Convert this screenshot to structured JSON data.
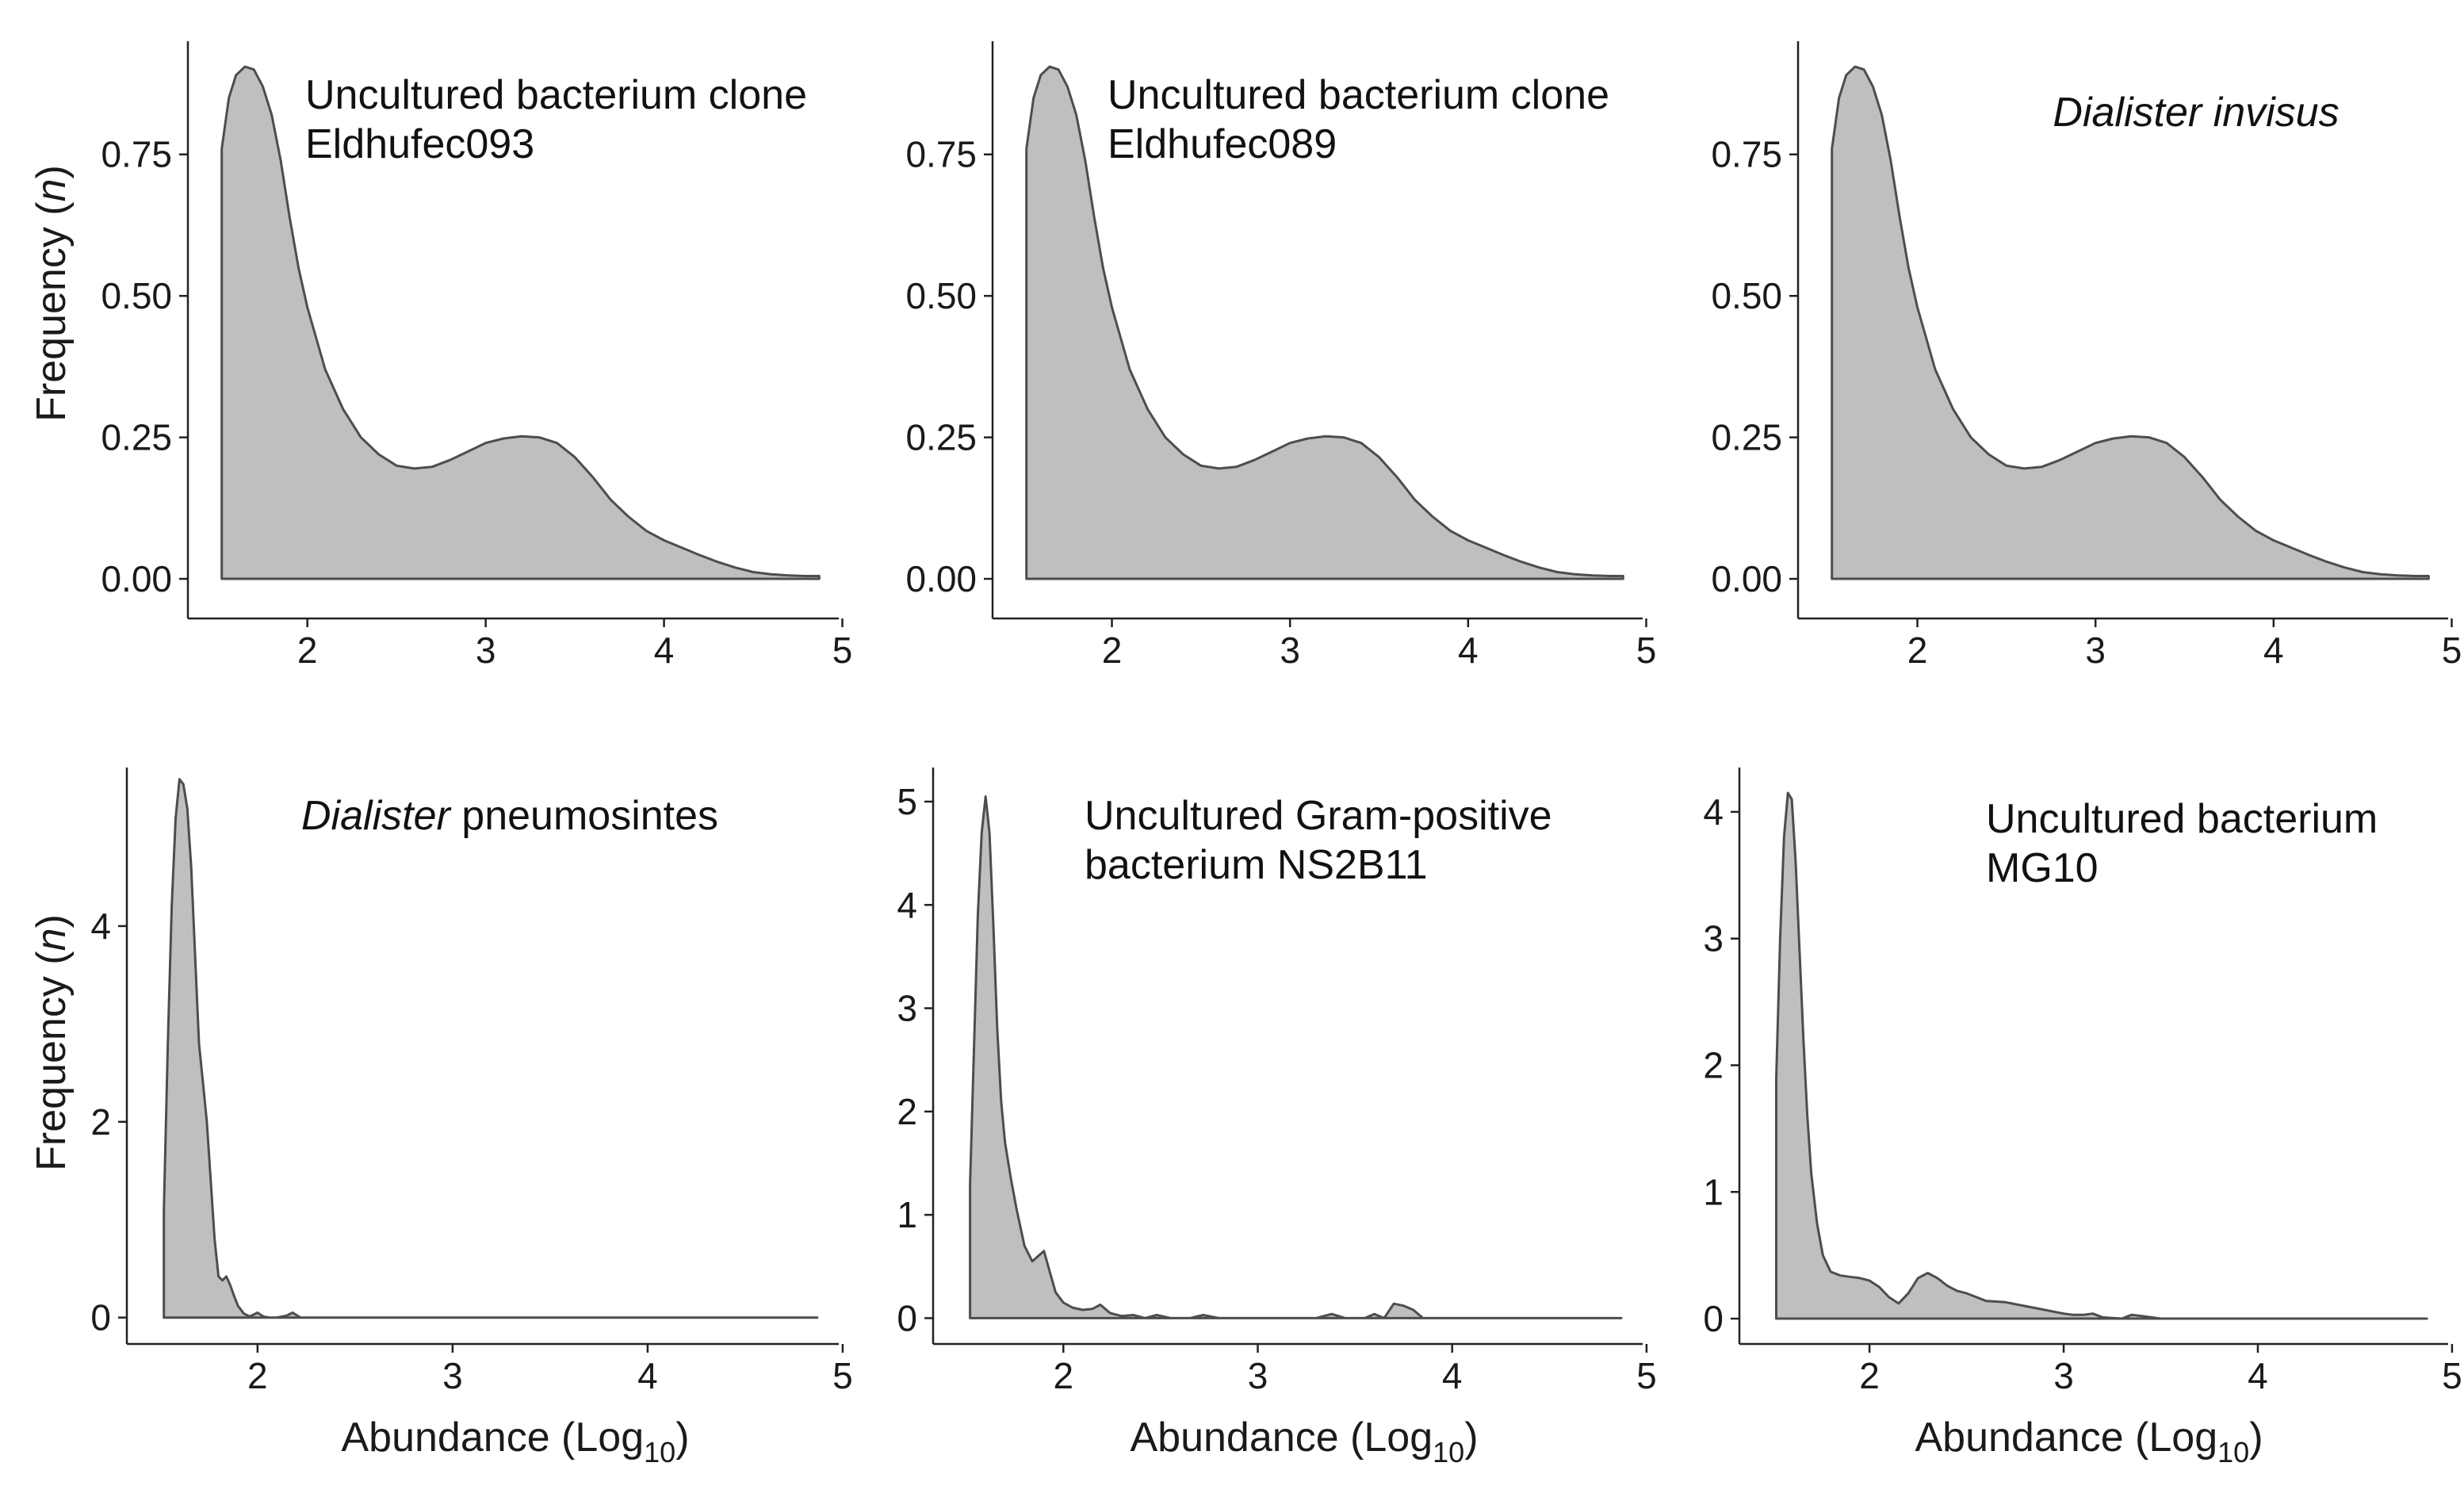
{
  "figure": {
    "ylabel": "Frequency",
    "ylabel_var": "n",
    "xlabel": "Abundance (Log",
    "xlabel_sub": "10",
    "xlabel_end": ")"
  },
  "chart_data": [
    {
      "type": "area",
      "title_lines": [
        [
          {
            "text": "Uncultured bacterium clone",
            "italic": false
          }
        ],
        [
          {
            "text": "Eldhufec093",
            "italic": false
          }
        ]
      ],
      "xlim": [
        1.33,
        4.98
      ],
      "ylim": [
        -0.07,
        0.95
      ],
      "xticks": [
        2,
        3,
        4,
        5
      ],
      "yticks": [
        0,
        0.25,
        0.5,
        0.75
      ],
      "ytick_labels": [
        "0.00",
        "0.25",
        "0.50",
        "0.75"
      ],
      "x": [
        1.52,
        1.52,
        1.56,
        1.6,
        1.65,
        1.7,
        1.75,
        1.8,
        1.85,
        1.9,
        1.95,
        2.0,
        2.1,
        2.2,
        2.3,
        2.4,
        2.5,
        2.6,
        2.7,
        2.8,
        2.9,
        3.0,
        3.1,
        3.2,
        3.3,
        3.4,
        3.5,
        3.6,
        3.7,
        3.8,
        3.9,
        4.0,
        4.1,
        4.2,
        4.3,
        4.4,
        4.5,
        4.6,
        4.7,
        4.8,
        4.87,
        4.87
      ],
      "y": [
        0,
        0.76,
        0.85,
        0.89,
        0.905,
        0.9,
        0.87,
        0.82,
        0.74,
        0.64,
        0.55,
        0.48,
        0.37,
        0.3,
        0.25,
        0.22,
        0.2,
        0.195,
        0.198,
        0.21,
        0.225,
        0.24,
        0.248,
        0.252,
        0.25,
        0.24,
        0.215,
        0.18,
        0.14,
        0.11,
        0.085,
        0.068,
        0.055,
        0.042,
        0.03,
        0.02,
        0.012,
        0.008,
        0.006,
        0.005,
        0.005,
        0
      ]
    },
    {
      "type": "area",
      "title_lines": [
        [
          {
            "text": "Uncultured bacterium clone",
            "italic": false
          }
        ],
        [
          {
            "text": "Eldhufec089",
            "italic": false
          }
        ]
      ],
      "xlim": [
        1.33,
        4.98
      ],
      "ylim": [
        -0.07,
        0.95
      ],
      "xticks": [
        2,
        3,
        4,
        5
      ],
      "yticks": [
        0,
        0.25,
        0.5,
        0.75
      ],
      "ytick_labels": [
        "0.00",
        "0.25",
        "0.50",
        "0.75"
      ],
      "x": [
        1.52,
        1.52,
        1.56,
        1.6,
        1.65,
        1.7,
        1.75,
        1.8,
        1.85,
        1.9,
        1.95,
        2.0,
        2.1,
        2.2,
        2.3,
        2.4,
        2.5,
        2.6,
        2.7,
        2.8,
        2.9,
        3.0,
        3.1,
        3.2,
        3.3,
        3.4,
        3.5,
        3.6,
        3.7,
        3.8,
        3.9,
        4.0,
        4.1,
        4.2,
        4.3,
        4.4,
        4.5,
        4.6,
        4.7,
        4.8,
        4.87,
        4.87
      ],
      "y": [
        0,
        0.76,
        0.85,
        0.89,
        0.905,
        0.9,
        0.87,
        0.82,
        0.74,
        0.64,
        0.55,
        0.48,
        0.37,
        0.3,
        0.25,
        0.22,
        0.2,
        0.195,
        0.198,
        0.21,
        0.225,
        0.24,
        0.248,
        0.252,
        0.25,
        0.24,
        0.215,
        0.18,
        0.14,
        0.11,
        0.085,
        0.068,
        0.055,
        0.042,
        0.03,
        0.02,
        0.012,
        0.008,
        0.006,
        0.005,
        0.005,
        0
      ]
    },
    {
      "type": "area",
      "title_lines": [
        [
          {
            "text": "Dialister invisus",
            "italic": true
          }
        ]
      ],
      "xlim": [
        1.33,
        4.98
      ],
      "ylim": [
        -0.07,
        0.95
      ],
      "xticks": [
        2,
        3,
        4,
        5
      ],
      "yticks": [
        0,
        0.25,
        0.5,
        0.75
      ],
      "ytick_labels": [
        "0.00",
        "0.25",
        "0.50",
        "0.75"
      ],
      "x": [
        1.52,
        1.52,
        1.56,
        1.6,
        1.65,
        1.7,
        1.75,
        1.8,
        1.85,
        1.9,
        1.95,
        2.0,
        2.1,
        2.2,
        2.3,
        2.4,
        2.5,
        2.6,
        2.7,
        2.8,
        2.9,
        3.0,
        3.1,
        3.2,
        3.3,
        3.4,
        3.5,
        3.6,
        3.7,
        3.8,
        3.9,
        4.0,
        4.1,
        4.2,
        4.3,
        4.4,
        4.5,
        4.6,
        4.7,
        4.8,
        4.87,
        4.87
      ],
      "y": [
        0,
        0.76,
        0.85,
        0.89,
        0.905,
        0.9,
        0.87,
        0.82,
        0.74,
        0.64,
        0.55,
        0.48,
        0.37,
        0.3,
        0.25,
        0.22,
        0.2,
        0.195,
        0.198,
        0.21,
        0.225,
        0.24,
        0.248,
        0.252,
        0.25,
        0.24,
        0.215,
        0.18,
        0.14,
        0.11,
        0.085,
        0.068,
        0.055,
        0.042,
        0.03,
        0.02,
        0.012,
        0.008,
        0.006,
        0.005,
        0.005,
        0
      ]
    },
    {
      "type": "area",
      "title_lines": [
        [
          {
            "text": "Dialister",
            "italic": true
          },
          {
            "text": " pneumosintes",
            "italic": false
          }
        ]
      ],
      "xlim": [
        1.33,
        4.98
      ],
      "ylim": [
        -0.27,
        5.62
      ],
      "xticks": [
        2,
        3,
        4,
        5
      ],
      "yticks": [
        0,
        2,
        4
      ],
      "ytick_labels": [
        "0",
        "2",
        "4"
      ],
      "x": [
        1.52,
        1.52,
        1.54,
        1.56,
        1.58,
        1.6,
        1.62,
        1.64,
        1.66,
        1.68,
        1.7,
        1.72,
        1.74,
        1.76,
        1.78,
        1.8,
        1.82,
        1.84,
        1.86,
        1.88,
        1.9,
        1.93,
        1.96,
        2.0,
        2.03,
        2.06,
        2.1,
        2.15,
        2.18,
        2.22,
        2.3,
        4.87,
        4.87
      ],
      "y": [
        0,
        1.1,
        2.8,
        4.2,
        5.1,
        5.5,
        5.45,
        5.2,
        4.6,
        3.7,
        2.8,
        2.4,
        2.0,
        1.4,
        0.8,
        0.42,
        0.38,
        0.42,
        0.33,
        0.22,
        0.12,
        0.04,
        0.01,
        0.05,
        0.01,
        0.0,
        0.0,
        0.02,
        0.05,
        0.0,
        0.0,
        0.0,
        0
      ]
    },
    {
      "type": "area",
      "title_lines": [
        [
          {
            "text": "Uncultured Gram-positive",
            "italic": false
          }
        ],
        [
          {
            "text": "bacterium NS2B11",
            "italic": false
          }
        ]
      ],
      "xlim": [
        1.33,
        4.98
      ],
      "ylim": [
        -0.25,
        5.33
      ],
      "xticks": [
        2,
        3,
        4,
        5
      ],
      "yticks": [
        0,
        1,
        2,
        3,
        4,
        5
      ],
      "ytick_labels": [
        "0",
        "1",
        "2",
        "3",
        "4",
        "5"
      ],
      "x": [
        1.52,
        1.52,
        1.54,
        1.56,
        1.58,
        1.6,
        1.62,
        1.64,
        1.66,
        1.68,
        1.7,
        1.73,
        1.76,
        1.8,
        1.84,
        1.87,
        1.9,
        1.93,
        1.96,
        2.0,
        2.05,
        2.1,
        2.15,
        2.19,
        2.24,
        2.3,
        2.36,
        2.42,
        2.48,
        2.55,
        2.65,
        2.72,
        2.8,
        3.3,
        3.38,
        3.45,
        3.55,
        3.6,
        3.65,
        3.7,
        3.75,
        3.8,
        3.85,
        4.87,
        4.87
      ],
      "y": [
        0,
        1.3,
        2.6,
        3.9,
        4.7,
        5.05,
        4.7,
        3.8,
        2.8,
        2.1,
        1.7,
        1.35,
        1.05,
        0.7,
        0.55,
        0.6,
        0.65,
        0.45,
        0.25,
        0.15,
        0.1,
        0.08,
        0.09,
        0.13,
        0.05,
        0.02,
        0.03,
        0.0,
        0.03,
        0.0,
        0.0,
        0.03,
        0.0,
        0.0,
        0.04,
        0.0,
        0.0,
        0.04,
        0.0,
        0.14,
        0.12,
        0.08,
        0.0,
        0.0,
        0
      ]
    },
    {
      "type": "area",
      "title_lines": [
        [
          {
            "text": "Uncultured bacterium",
            "italic": false
          }
        ],
        [
          {
            "text": "MG10",
            "italic": false
          }
        ]
      ],
      "xlim": [
        1.33,
        4.98
      ],
      "ylim": [
        -0.2,
        4.35
      ],
      "xticks": [
        2,
        3,
        4,
        5
      ],
      "yticks": [
        0,
        1,
        2,
        3,
        4
      ],
      "ytick_labels": [
        "0",
        "1",
        "2",
        "3",
        "4"
      ],
      "x": [
        1.52,
        1.52,
        1.54,
        1.56,
        1.58,
        1.6,
        1.62,
        1.64,
        1.66,
        1.68,
        1.7,
        1.73,
        1.76,
        1.8,
        1.85,
        1.9,
        1.95,
        2.0,
        2.05,
        2.1,
        2.15,
        2.2,
        2.25,
        2.3,
        2.35,
        2.4,
        2.45,
        2.5,
        2.6,
        2.7,
        2.8,
        2.9,
        3.0,
        3.05,
        3.1,
        3.15,
        3.2,
        3.3,
        3.35,
        3.4,
        3.5,
        4.87,
        4.87
      ],
      "y": [
        0,
        1.9,
        3.0,
        3.8,
        4.15,
        4.1,
        3.6,
        2.9,
        2.2,
        1.6,
        1.15,
        0.75,
        0.5,
        0.37,
        0.34,
        0.33,
        0.32,
        0.3,
        0.25,
        0.17,
        0.12,
        0.2,
        0.32,
        0.36,
        0.32,
        0.26,
        0.22,
        0.2,
        0.14,
        0.13,
        0.1,
        0.07,
        0.04,
        0.03,
        0.03,
        0.04,
        0.01,
        0.0,
        0.03,
        0.02,
        0.0,
        0.0,
        0
      ]
    }
  ]
}
